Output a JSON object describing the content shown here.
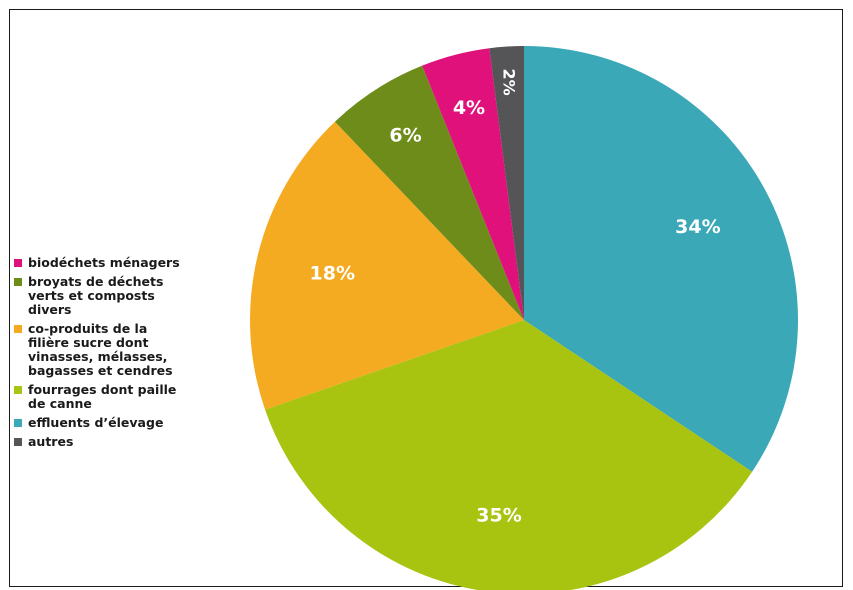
{
  "chart_data": {
    "type": "pie",
    "start": "12 o'clock",
    "direction": "clockwise",
    "slices": [
      {
        "label": "effluents d’élevage",
        "value": 34,
        "display": "34%",
        "color": "#3aa8b7"
      },
      {
        "label": "fourrages dont paille\nde canne",
        "value": 35,
        "display": "35%",
        "color": "#a8c310"
      },
      {
        "label": "co-produits de la\nfilière sucre dont\nvinasses, mélasses,\nbagasses et cendres",
        "value": 18,
        "display": "18%",
        "color": "#f4ab21"
      },
      {
        "label": "broyats de déchets\nverts et composts\ndivers",
        "value": 6,
        "display": "6%",
        "color": "#6e8c19"
      },
      {
        "label": "biodéchets ménagers",
        "value": 4,
        "display": "4%",
        "color": "#e0117a"
      },
      {
        "label": "autres",
        "value": 2,
        "display": "2%",
        "color": "#555557"
      }
    ],
    "legend": {
      "placement": "left",
      "order": [
        "biodéchets ménagers",
        "broyats de déchets\nverts et composts\ndivers",
        "co-produits de la\nfilière sucre dont\nvinasses, mélasses,\nbagasses et cendres",
        "fourrages dont paille\nde canne",
        "effluents d’élevage",
        "autres"
      ]
    }
  }
}
